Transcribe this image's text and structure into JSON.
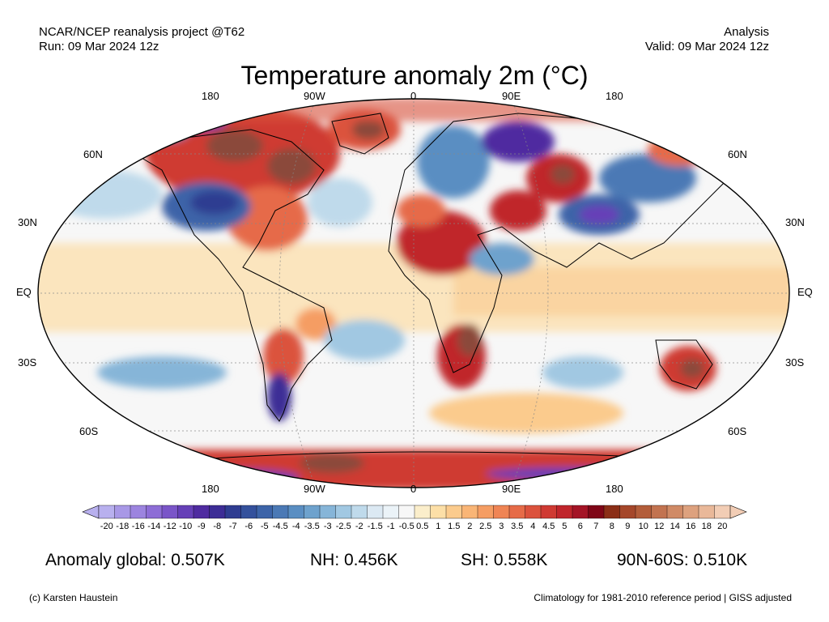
{
  "header": {
    "source": "NCAR/NCEP reanalysis project @T62",
    "run": "Run: 09 Mar 2024 12z",
    "type": "Analysis",
    "valid": "Valid: 09 Mar 2024 12z"
  },
  "title": "Temperature anomaly 2m (°C)",
  "longitude_labels": [
    "180",
    "90W",
    "0",
    "90E",
    "180"
  ],
  "latitude_labels_left": [
    "60N",
    "30N",
    "EQ",
    "30S",
    "60S"
  ],
  "latitude_labels_right": [
    "60N",
    "30N",
    "EQ",
    "30S",
    "60S"
  ],
  "colorbar": {
    "labels": [
      "-20",
      "-18",
      "-16",
      "-14",
      "-12",
      "-10",
      "-9",
      "-8",
      "-7",
      "-6",
      "-5",
      "-4.5",
      "-4",
      "-3.5",
      "-3",
      "-2.5",
      "-2",
      "-1.5",
      "-1",
      "-0.5",
      "0.5",
      "1",
      "1.5",
      "2",
      "2.5",
      "3",
      "3.5",
      "4",
      "4.5",
      "5",
      "6",
      "7",
      "8",
      "9",
      "10",
      "12",
      "14",
      "16",
      "18",
      "20"
    ],
    "colors": [
      "#b8b0ee",
      "#a898e6",
      "#9c84df",
      "#8d6dd6",
      "#7a55c8",
      "#6640b7",
      "#4f2ba0",
      "#3d2d96",
      "#2f3d91",
      "#34519c",
      "#3d64a8",
      "#4b79b5",
      "#5a8ec2",
      "#6ea2cd",
      "#86b5d8",
      "#a1c8e2",
      "#bfdaeb",
      "#dce9f3",
      "#ebf3f8",
      "#f7f7f7",
      "#fbeecb",
      "#fcdfa7",
      "#fbcb8d",
      "#f9b576",
      "#f59d63",
      "#ef8454",
      "#e66b48",
      "#db523d",
      "#cf3a33",
      "#c0252c",
      "#a41426",
      "#7f0617",
      "#8b2e17",
      "#a5472a",
      "#b35d3a",
      "#c27350",
      "#d08a66",
      "#dda17e",
      "#e9b899",
      "#f2cdb5"
    ]
  },
  "stats": {
    "global": "Anomaly global: 0.507K",
    "nh": "NH: 0.456K",
    "sh": "SH: 0.558K",
    "arctic": "90N-60S: 0.510K"
  },
  "footer": {
    "credit": "(c) Karsten Haustein",
    "note": "Climatology for 1981-2010 reference period | GISS adjusted"
  }
}
